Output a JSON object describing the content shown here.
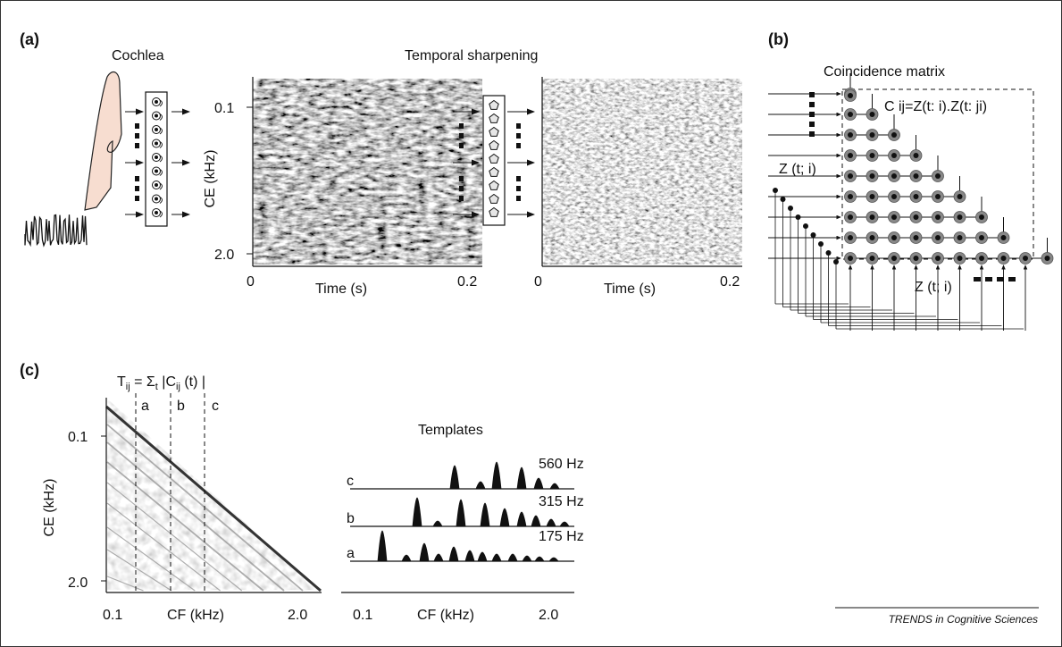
{
  "panel_a": {
    "label": "(a)",
    "cochlea_title": "Cochlea",
    "sharpening_title": "Temporal sharpening",
    "ylabel": "CE (kHz)",
    "ytick_top": "0.1",
    "ytick_bottom": "2.0",
    "xlabel": "Time (s)",
    "xtick_start": "0",
    "xtick_end": "0.2"
  },
  "panel_b": {
    "label": "(b)",
    "title": "Coincidence matrix",
    "formula": "C ij=Z(t: i).Z(t: ji)",
    "input_left": "Z (t; i)",
    "input_bottom": "Z (t; i)"
  },
  "panel_c": {
    "label": "(c)",
    "formula_main": "T",
    "formula_ij": "ij",
    "formula_mid": " = Σ",
    "formula_t": "t",
    "formula_abs": " |C",
    "formula_ij2": "ij",
    "formula_end": " (t) |",
    "marker_a": "a",
    "marker_b": "b",
    "marker_c": "c",
    "ylabel": "CE (kHz)",
    "ytick_top": "0.1",
    "ytick_bottom": "2.0",
    "xlabel": "CF (kHz)",
    "xtick_start": "0.1",
    "xtick_end": "2.0",
    "templates_title": "Templates",
    "templates": [
      {
        "label": "c",
        "freq": "560 Hz"
      },
      {
        "label": "b",
        "freq": "315 Hz"
      },
      {
        "label": "a",
        "freq": "175 Hz"
      }
    ],
    "templates_xlabel": "CF (kHz)",
    "templates_xtick_start": "0.1",
    "templates_xtick_end": "2.0"
  },
  "footer": "TRENDS in Cognitive Sciences"
}
